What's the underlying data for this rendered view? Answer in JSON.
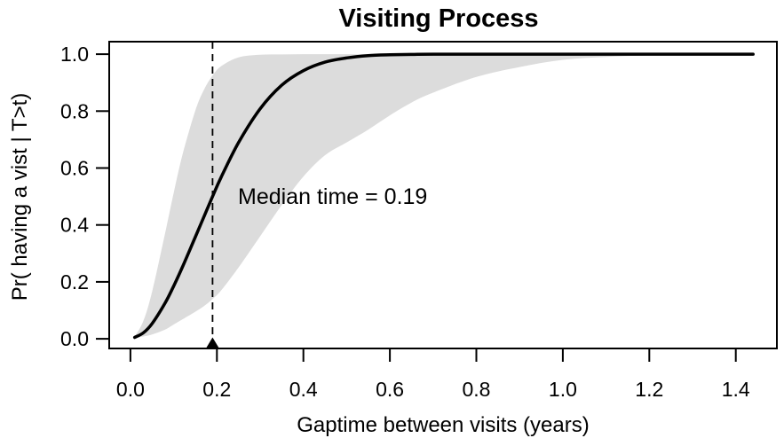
{
  "figure": {
    "title": "Visiting Process"
  },
  "chart_data": {
    "type": "line",
    "title": "Visiting Process",
    "xlabel": "Gaptime between visits (years)",
    "ylabel": "Pr( having a vist | T>t)",
    "xlim": [
      -0.049,
      1.495
    ],
    "ylim": [
      -0.034,
      1.044
    ],
    "grid": false,
    "legend": "none",
    "x_ticks": [
      0.0,
      0.2,
      0.4,
      0.6,
      0.8,
      1.0,
      1.2,
      1.4
    ],
    "x_tick_labels": [
      "0.0",
      "0.2",
      "0.4",
      "0.6",
      "0.8",
      "1.0",
      "1.2",
      "1.4"
    ],
    "y_ticks": [
      0.0,
      0.2,
      0.4,
      0.6,
      0.8,
      1.0
    ],
    "y_tick_labels": [
      "0.0",
      "0.2",
      "0.4",
      "0.6",
      "0.8",
      "1.0"
    ],
    "median_time": 0.19,
    "annotation": {
      "text": "Median time = 0.19",
      "x": 0.25,
      "y": 0.5
    },
    "band_color": "#dcdcdc",
    "line_color": "#000000",
    "x": [
      0.01,
      0.03,
      0.05,
      0.08,
      0.1,
      0.12,
      0.15,
      0.17,
      0.19,
      0.21,
      0.25,
      0.3,
      0.35,
      0.4,
      0.45,
      0.5,
      0.55,
      0.6,
      0.65,
      0.7,
      0.8,
      0.9,
      1.0,
      1.1,
      1.2,
      1.3,
      1.44
    ],
    "series": [
      {
        "name": "survival-estimate",
        "values": [
          0.005,
          0.021,
          0.053,
          0.125,
          0.185,
          0.251,
          0.357,
          0.429,
          0.5,
          0.568,
          0.689,
          0.808,
          0.891,
          0.942,
          0.972,
          0.987,
          0.995,
          0.998,
          0.999,
          1.0,
          1.0,
          1.0,
          1.0,
          1.0,
          1.0,
          1.0,
          1.0
        ]
      },
      {
        "name": "upper-confidence-bound",
        "values": [
          0.007,
          0.063,
          0.164,
          0.369,
          0.512,
          0.644,
          0.801,
          0.875,
          0.925,
          0.958,
          0.989,
          0.998,
          0.999,
          1.0,
          1.0,
          1.0,
          1.0,
          1.0,
          1.0,
          1.0,
          1.0,
          1.0,
          1.0,
          1.0,
          1.0,
          1.0,
          1.0
        ]
      },
      {
        "name": "lower-confidence-bound",
        "values": [
          0.003,
          0.008,
          0.015,
          0.032,
          0.05,
          0.068,
          0.095,
          0.115,
          0.14,
          0.17,
          0.25,
          0.36,
          0.47,
          0.57,
          0.645,
          0.69,
          0.735,
          0.785,
          0.83,
          0.865,
          0.92,
          0.955,
          0.98,
          0.99,
          0.996,
          0.999,
          1.0
        ]
      }
    ]
  }
}
